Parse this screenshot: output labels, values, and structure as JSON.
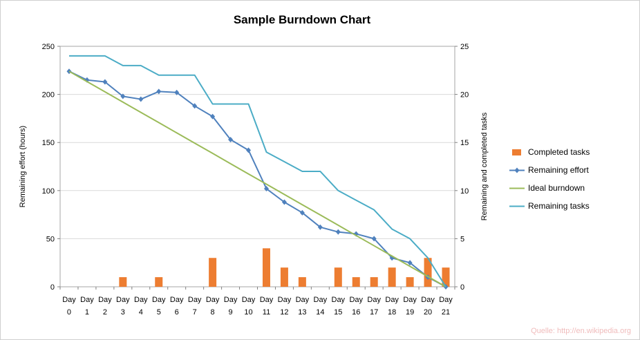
{
  "title": "Sample Burndown Chart",
  "source_note": "Quelle: http://en.wikipedia.org",
  "chart_data": {
    "type": "line",
    "title": "Sample Burndown Chart",
    "grid": true,
    "legend_position": "right",
    "categories": [
      "Day 0",
      "Day 1",
      "Day 2",
      "Day 3",
      "Day 4",
      "Day 5",
      "Day 6",
      "Day 7",
      "Day 8",
      "Day 9",
      "Day 10",
      "Day 11",
      "Day 12",
      "Day 13",
      "Day 14",
      "Day 15",
      "Day 16",
      "Day 17",
      "Day 18",
      "Day 19",
      "Day 20",
      "Day 21"
    ],
    "left_axis": {
      "label": "Remaining effort (hours)",
      "min": 0,
      "max": 250,
      "ticks": [
        0,
        50,
        100,
        150,
        200,
        250
      ]
    },
    "right_axis": {
      "label": "Remaining and completed tasks",
      "min": 0,
      "max": 25,
      "ticks": [
        0,
        5,
        10,
        15,
        20,
        25
      ]
    },
    "series": [
      {
        "name": "Completed tasks",
        "type": "bar",
        "axis": "right",
        "color": "#ED7D31",
        "values": [
          0,
          0,
          0,
          1,
          0,
          1,
          0,
          0,
          3,
          0,
          0,
          4,
          2,
          1,
          0,
          2,
          1,
          1,
          2,
          1,
          3,
          2
        ]
      },
      {
        "name": "Remaining effort",
        "type": "line",
        "marker": "diamond",
        "axis": "left",
        "color": "#4F81BD",
        "values": [
          224,
          215,
          213,
          198,
          195,
          203,
          202,
          188,
          177,
          153,
          142,
          102,
          88,
          77,
          62,
          57,
          55,
          50,
          30,
          25,
          10,
          0
        ]
      },
      {
        "name": "Ideal burndown",
        "type": "line",
        "axis": "left",
        "color": "#9BBB59",
        "values": [
          224,
          213.3,
          202.7,
          192,
          181.3,
          170.7,
          160,
          149.3,
          138.7,
          128,
          117.3,
          106.7,
          96,
          85.3,
          74.7,
          64,
          53.3,
          42.7,
          32,
          21.3,
          10.7,
          0
        ]
      },
      {
        "name": "Remaining tasks",
        "type": "line",
        "axis": "right",
        "color": "#4BACC6",
        "values": [
          24,
          24,
          24,
          23,
          23,
          22,
          22,
          22,
          19,
          19,
          19,
          14,
          13,
          12,
          12,
          10,
          9,
          8,
          6,
          5,
          3,
          0
        ]
      }
    ]
  }
}
